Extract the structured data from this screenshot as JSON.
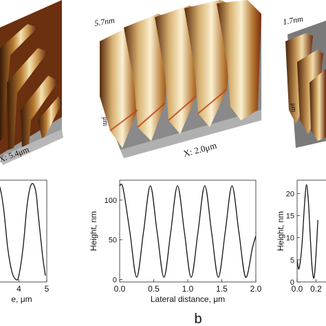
{
  "figure": {
    "panel_b_label": "b"
  },
  "afm_images": [
    {
      "z_label": "",
      "x_label": "X: 5.4μm"
    },
    {
      "z_label": "5.7nm",
      "x_label": "X: 2.0μm"
    },
    {
      "z_label": "1.7nm",
      "x_label": ""
    }
  ],
  "chart_data": [
    {
      "type": "line",
      "xlabel": "e, μm",
      "ylabel": "",
      "xlim": [
        3.2,
        5.0
      ],
      "ylim": [
        -3,
        125
      ],
      "x_ticks": [
        4,
        5
      ],
      "y_ticks": [],
      "series": [
        {
          "x": [
            3.2,
            3.3,
            3.45,
            3.6,
            3.75,
            3.9,
            4.0,
            4.15,
            4.3,
            4.45,
            4.6,
            4.7,
            4.85,
            4.95
          ],
          "y": [
            110,
            118,
            90,
            40,
            10,
            0,
            5,
            40,
            95,
            120,
            112,
            80,
            30,
            5
          ]
        }
      ]
    },
    {
      "type": "line",
      "xlabel": "Lateral distance, μm",
      "ylabel": "Height, nm",
      "xlim": [
        0.0,
        2.0
      ],
      "ylim": [
        -3,
        125
      ],
      "x_ticks": [
        0.0,
        0.5,
        1.0,
        1.5,
        2.0
      ],
      "y_ticks": [
        0,
        50,
        100
      ],
      "series": [
        {
          "x": [
            0.0,
            0.05,
            0.15,
            0.25,
            0.35,
            0.45,
            0.55,
            0.65,
            0.75,
            0.85,
            0.95,
            1.05,
            1.15,
            1.25,
            1.35,
            1.45,
            1.55,
            1.65,
            1.75,
            1.85,
            1.95,
            2.0
          ],
          "y": [
            118,
            115,
            60,
            3,
            60,
            118,
            60,
            3,
            60,
            118,
            60,
            3,
            60,
            118,
            60,
            3,
            60,
            118,
            60,
            3,
            40,
            55
          ]
        }
      ]
    },
    {
      "type": "line",
      "xlabel": "",
      "ylabel": "Height, nm",
      "xlim": [
        0.0,
        0.35
      ],
      "ylim": [
        0,
        23
      ],
      "x_ticks": [
        0.0,
        0.2
      ],
      "x_tick_labels": [
        "0.0",
        "0.2"
      ],
      "y_ticks": [
        0,
        5,
        10,
        15,
        20
      ],
      "series": [
        {
          "x": [
            0.0,
            0.02,
            0.05,
            0.08,
            0.1,
            0.12,
            0.14,
            0.16,
            0.18,
            0.2,
            0.22
          ],
          "y": [
            5,
            3,
            8,
            18,
            22,
            18,
            10,
            3,
            1,
            6,
            14
          ]
        }
      ]
    }
  ]
}
